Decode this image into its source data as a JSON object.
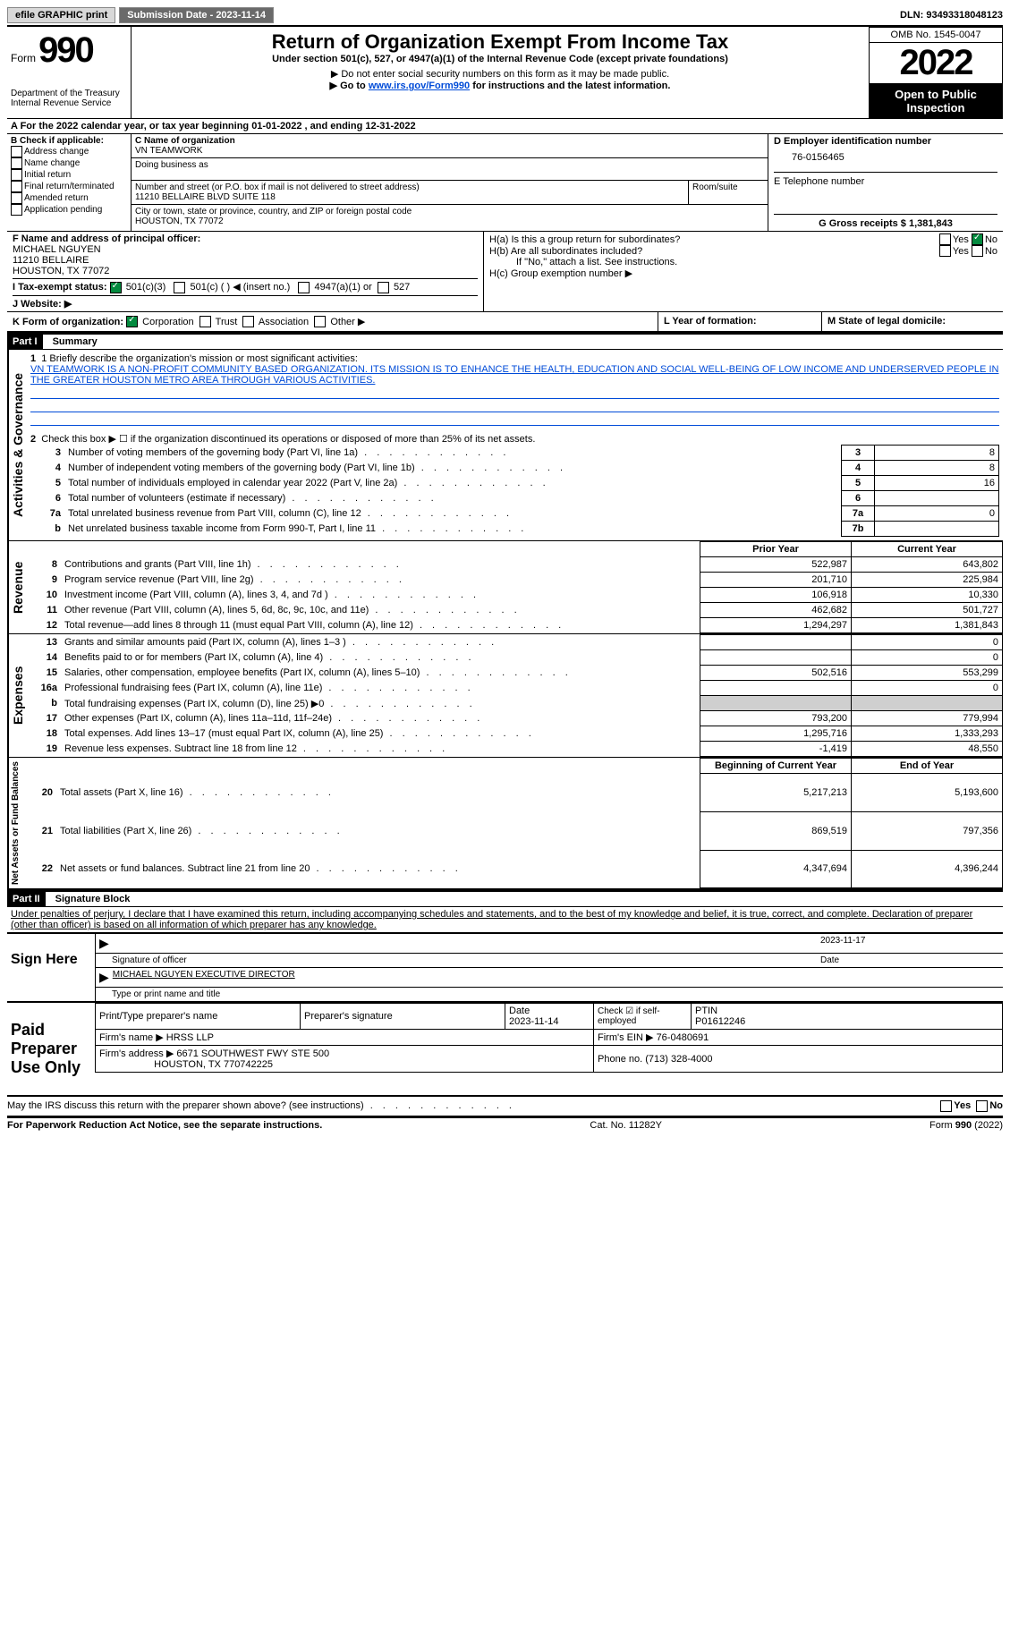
{
  "topbar": {
    "efile": "efile GRAPHIC print",
    "submission_label": "Submission Date - 2023-11-14",
    "dln_label": "DLN: 93493318048123"
  },
  "header": {
    "form_prefix": "Form",
    "form_num": "990",
    "dept": "Department of the Treasury",
    "irs": "Internal Revenue Service",
    "title": "Return of Organization Exempt From Income Tax",
    "subtitle": "Under section 501(c), 527, or 4947(a)(1) of the Internal Revenue Code (except private foundations)",
    "note1": "▶ Do not enter social security numbers on this form as it may be made public.",
    "note2_pre": "▶ Go to ",
    "note2_link": "www.irs.gov/Form990",
    "note2_post": " for instructions and the latest information.",
    "omb": "OMB No. 1545-0047",
    "year": "2022",
    "open": "Open to Public Inspection"
  },
  "sectionA": {
    "a_text": "A For the 2022 calendar year, or tax year beginning 01-01-2022    , and ending 12-31-2022",
    "b_label": "B Check if applicable:",
    "b_opts": [
      "Address change",
      "Name change",
      "Initial return",
      "Final return/terminated",
      "Amended return",
      "Application pending"
    ],
    "c_label": "C Name of organization",
    "c_val": "VN TEAMWORK",
    "dba": "Doing business as",
    "street_label": "Number and street (or P.O. box if mail is not delivered to street address)",
    "street": "11210 BELLAIRE BLVD SUITE 118",
    "room": "Room/suite",
    "city_label": "City or town, state or province, country, and ZIP or foreign postal code",
    "city": "HOUSTON, TX  77072",
    "d_label": "D Employer identification number",
    "d_val": "76-0156465",
    "e_label": "E Telephone number",
    "g_label": "G Gross receipts $ 1,381,843",
    "f_label": "F  Name and address of principal officer:",
    "f_name": "MICHAEL NGUYEN",
    "f_addr1": "11210 BELLAIRE",
    "f_addr2": "HOUSTON, TX  77072",
    "h_a": "H(a)  Is this a group return for subordinates?",
    "h_b": "H(b)  Are all subordinates included?",
    "h_note": "If \"No,\" attach a list. See instructions.",
    "h_c": "H(c)  Group exemption number ▶",
    "yes": "Yes",
    "no": "No",
    "i_label": "I    Tax-exempt status:",
    "i_1": "501(c)(3)",
    "i_2": "501(c) (   ) ◀ (insert no.)",
    "i_3": "4947(a)(1) or",
    "i_4": "527",
    "j_label": "J    Website: ▶",
    "k_label": "K Form of organization:",
    "k_opts": [
      "Corporation",
      "Trust",
      "Association",
      "Other ▶"
    ],
    "l_label": "L Year of formation:",
    "m_label": "M State of legal domicile:"
  },
  "part1": {
    "header": "Part I",
    "title": "Summary",
    "vlabel1": "Activities & Governance",
    "vlabel2": "Revenue",
    "vlabel3": "Expenses",
    "vlabel4": "Net Assets or Fund Balances",
    "line1_label": "1   Briefly describe the organization's mission or most significant activities:",
    "mission": "VN TEAMWORK IS A NON-PROFIT COMMUNITY BASED ORGANIZATION. ITS MISSION IS TO ENHANCE THE HEALTH, EDUCATION AND SOCIAL WELL-BEING OF LOW INCOME AND UNDERSERVED PEOPLE IN THE GREATER HOUSTON METRO AREA THROUGH VARIOUS ACTIVITIES.",
    "line2": "Check this box ▶ ☐  if the organization discontinued its operations or disposed of more than 25% of its net assets.",
    "rows_gov": [
      {
        "n": "3",
        "t": "Number of voting members of the governing body (Part VI, line 1a)",
        "box": "3",
        "v": "8"
      },
      {
        "n": "4",
        "t": "Number of independent voting members of the governing body (Part VI, line 1b)",
        "box": "4",
        "v": "8"
      },
      {
        "n": "5",
        "t": "Total number of individuals employed in calendar year 2022 (Part V, line 2a)",
        "box": "5",
        "v": "16"
      },
      {
        "n": "6",
        "t": "Total number of volunteers (estimate if necessary)",
        "box": "6",
        "v": ""
      },
      {
        "n": "7a",
        "t": "Total unrelated business revenue from Part VIII, column (C), line 12",
        "box": "7a",
        "v": "0"
      },
      {
        "n": "b",
        "t": "Net unrelated business taxable income from Form 990-T, Part I, line 11",
        "box": "7b",
        "v": ""
      }
    ],
    "col_prior": "Prior Year",
    "col_current": "Current Year",
    "col_boy": "Beginning of Current Year",
    "col_eoy": "End of Year",
    "rows_rev": [
      {
        "n": "8",
        "t": "Contributions and grants (Part VIII, line 1h)",
        "p": "522,987",
        "c": "643,802"
      },
      {
        "n": "9",
        "t": "Program service revenue (Part VIII, line 2g)",
        "p": "201,710",
        "c": "225,984"
      },
      {
        "n": "10",
        "t": "Investment income (Part VIII, column (A), lines 3, 4, and 7d )",
        "p": "106,918",
        "c": "10,330"
      },
      {
        "n": "11",
        "t": "Other revenue (Part VIII, column (A), lines 5, 6d, 8c, 9c, 10c, and 11e)",
        "p": "462,682",
        "c": "501,727"
      },
      {
        "n": "12",
        "t": "Total revenue—add lines 8 through 11 (must equal Part VIII, column (A), line 12)",
        "p": "1,294,297",
        "c": "1,381,843"
      }
    ],
    "rows_exp": [
      {
        "n": "13",
        "t": "Grants and similar amounts paid (Part IX, column (A), lines 1–3 )",
        "p": "",
        "c": "0"
      },
      {
        "n": "14",
        "t": "Benefits paid to or for members (Part IX, column (A), line 4)",
        "p": "",
        "c": "0"
      },
      {
        "n": "15",
        "t": "Salaries, other compensation, employee benefits (Part IX, column (A), lines 5–10)",
        "p": "502,516",
        "c": "553,299"
      },
      {
        "n": "16a",
        "t": "Professional fundraising fees (Part IX, column (A), line 11e)",
        "p": "",
        "c": "0"
      },
      {
        "n": "b",
        "t": "Total fundraising expenses (Part IX, column (D), line 25) ▶0",
        "p": "grey",
        "c": "grey"
      },
      {
        "n": "17",
        "t": "Other expenses (Part IX, column (A), lines 11a–11d, 11f–24e)",
        "p": "793,200",
        "c": "779,994"
      },
      {
        "n": "18",
        "t": "Total expenses. Add lines 13–17 (must equal Part IX, column (A), line 25)",
        "p": "1,295,716",
        "c": "1,333,293"
      },
      {
        "n": "19",
        "t": "Revenue less expenses. Subtract line 18 from line 12",
        "p": "-1,419",
        "c": "48,550"
      }
    ],
    "rows_net": [
      {
        "n": "20",
        "t": "Total assets (Part X, line 16)",
        "p": "5,217,213",
        "c": "5,193,600"
      },
      {
        "n": "21",
        "t": "Total liabilities (Part X, line 26)",
        "p": "869,519",
        "c": "797,356"
      },
      {
        "n": "22",
        "t": "Net assets or fund balances. Subtract line 21 from line 20",
        "p": "4,347,694",
        "c": "4,396,244"
      }
    ]
  },
  "part2": {
    "header": "Part II",
    "title": "Signature Block",
    "decl": "Under penalties of perjury, I declare that I have examined this return, including accompanying schedules and statements, and to the best of my knowledge and belief, it is true, correct, and complete. Declaration of preparer (other than officer) is based on all information of which preparer has any knowledge.",
    "sign_here": "Sign Here",
    "sig_officer": "Signature of officer",
    "date": "Date",
    "sig_date": "2023-11-17",
    "name_title": "MICHAEL NGUYEN  EXECUTIVE DIRECTOR",
    "name_label": "Type or print name and title",
    "paid": "Paid Preparer Use Only",
    "prep_name_label": "Print/Type preparer's name",
    "prep_sig_label": "Preparer's signature",
    "prep_date_label": "Date",
    "prep_date": "2023-11-14",
    "check_if": "Check ☑ if self-employed",
    "ptin_label": "PTIN",
    "ptin": "P01612246",
    "firm_name_label": "Firm's name     ▶",
    "firm_name": "HRSS LLP",
    "firm_ein_label": "Firm's EIN ▶",
    "firm_ein": "76-0480691",
    "firm_addr_label": "Firm's address ▶",
    "firm_addr1": "6671 SOUTHWEST FWY STE 500",
    "firm_addr2": "HOUSTON, TX  770742225",
    "phone_label": "Phone no.",
    "phone": "(713) 328-4000",
    "discuss": "May the IRS discuss this return with the preparer shown above? (see instructions)",
    "paperwork": "For Paperwork Reduction Act Notice, see the separate instructions.",
    "catno": "Cat. No. 11282Y",
    "formfoot": "Form 990 (2022)"
  }
}
